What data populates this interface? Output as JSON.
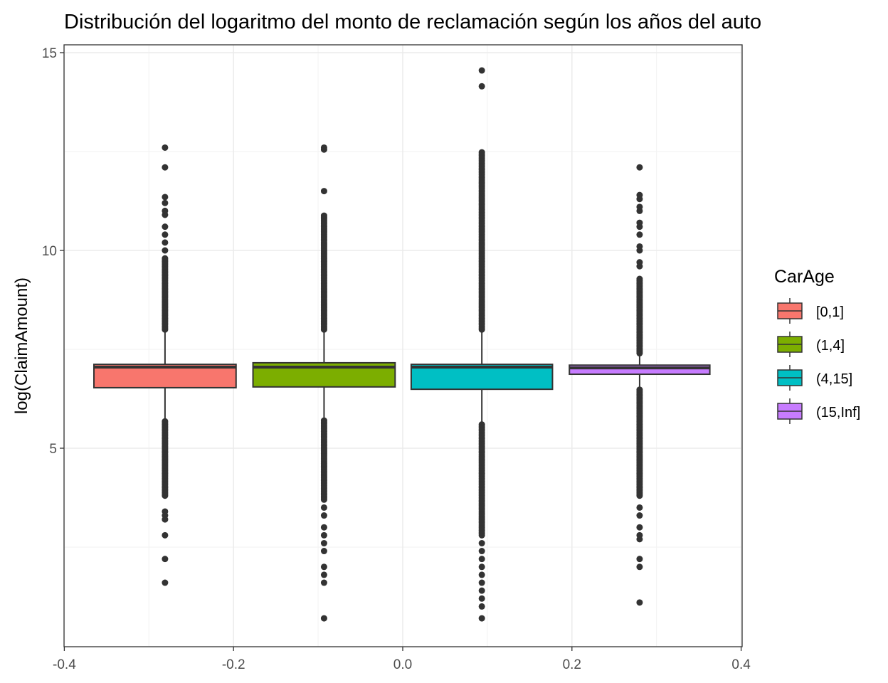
{
  "chart_data": {
    "type": "boxplot",
    "title": "Distribución del logaritmo del monto de reclamación según los años del auto",
    "xlabel": "",
    "ylabel": "log(ClaimAmount)",
    "xlim": [
      -0.4,
      0.4
    ],
    "ylim": [
      0,
      15.24
    ],
    "x_ticks": [
      "-0.4",
      "-0.2",
      "0.0",
      "0.2",
      "0.4"
    ],
    "x_tick_values": [
      -0.4,
      -0.2,
      0.0,
      0.2,
      0.4
    ],
    "y_ticks": [
      "5",
      "10",
      "15"
    ],
    "y_tick_values": [
      5,
      10,
      15
    ],
    "grid": true,
    "legend": {
      "title": "CarAge",
      "position": "right"
    },
    "series": [
      {
        "name": "[0,1]",
        "color": "#F8766D",
        "xmin": -0.365,
        "xmax": -0.197,
        "lower_whisker": 5.68,
        "q1": 6.53,
        "median": 7.05,
        "q3": 7.12,
        "upper_whisker": 7.97,
        "outlier_dense_ranges": [
          [
            8.0,
            9.8
          ],
          [
            3.8,
            5.68
          ]
        ],
        "outliers": [
          10.0,
          10.2,
          10.4,
          10.6,
          10.9,
          11.0,
          11.2,
          11.35,
          12.1,
          12.6,
          3.4,
          3.3,
          3.2,
          2.8,
          2.2,
          1.6
        ]
      },
      {
        "name": "(1,4]",
        "color": "#7CAE00",
        "xmin": -0.177,
        "xmax": -0.009,
        "lower_whisker": 5.7,
        "q1": 6.55,
        "median": 7.05,
        "q3": 7.16,
        "upper_whisker": 7.97,
        "outlier_dense_ranges": [
          [
            8.0,
            10.9
          ],
          [
            3.7,
            5.7
          ]
        ],
        "outliers": [
          11.5,
          12.55,
          12.6,
          3.5,
          3.3,
          3.0,
          2.8,
          2.6,
          2.4,
          2.0,
          1.8,
          1.6,
          0.7
        ]
      },
      {
        "name": "(4,15]",
        "color": "#00BFC4",
        "xmin": 0.01,
        "xmax": 0.177,
        "lower_whisker": 5.63,
        "q1": 6.49,
        "median": 7.05,
        "q3": 7.12,
        "upper_whisker": 8.0,
        "outlier_dense_ranges": [
          [
            8.0,
            12.5
          ],
          [
            2.8,
            5.63
          ]
        ],
        "outliers": [
          14.15,
          14.55,
          2.6,
          2.4,
          2.2,
          2.0,
          1.8,
          1.6,
          1.4,
          1.2,
          1.0,
          0.7
        ]
      },
      {
        "name": "(15,Inf]",
        "color": "#C77CFF",
        "xmin": 0.197,
        "xmax": 0.363,
        "lower_whisker": 6.53,
        "q1": 6.87,
        "median": 7.03,
        "q3": 7.1,
        "upper_whisker": 7.39,
        "outlier_dense_ranges": [
          [
            7.4,
            9.3
          ],
          [
            3.8,
            6.5
          ]
        ],
        "outliers": [
          9.6,
          9.7,
          10.0,
          10.1,
          10.4,
          10.6,
          10.7,
          11.0,
          11.1,
          11.3,
          11.4,
          12.1,
          3.5,
          3.3,
          3.0,
          2.8,
          2.7,
          2.2,
          2.0,
          1.1
        ]
      }
    ]
  }
}
